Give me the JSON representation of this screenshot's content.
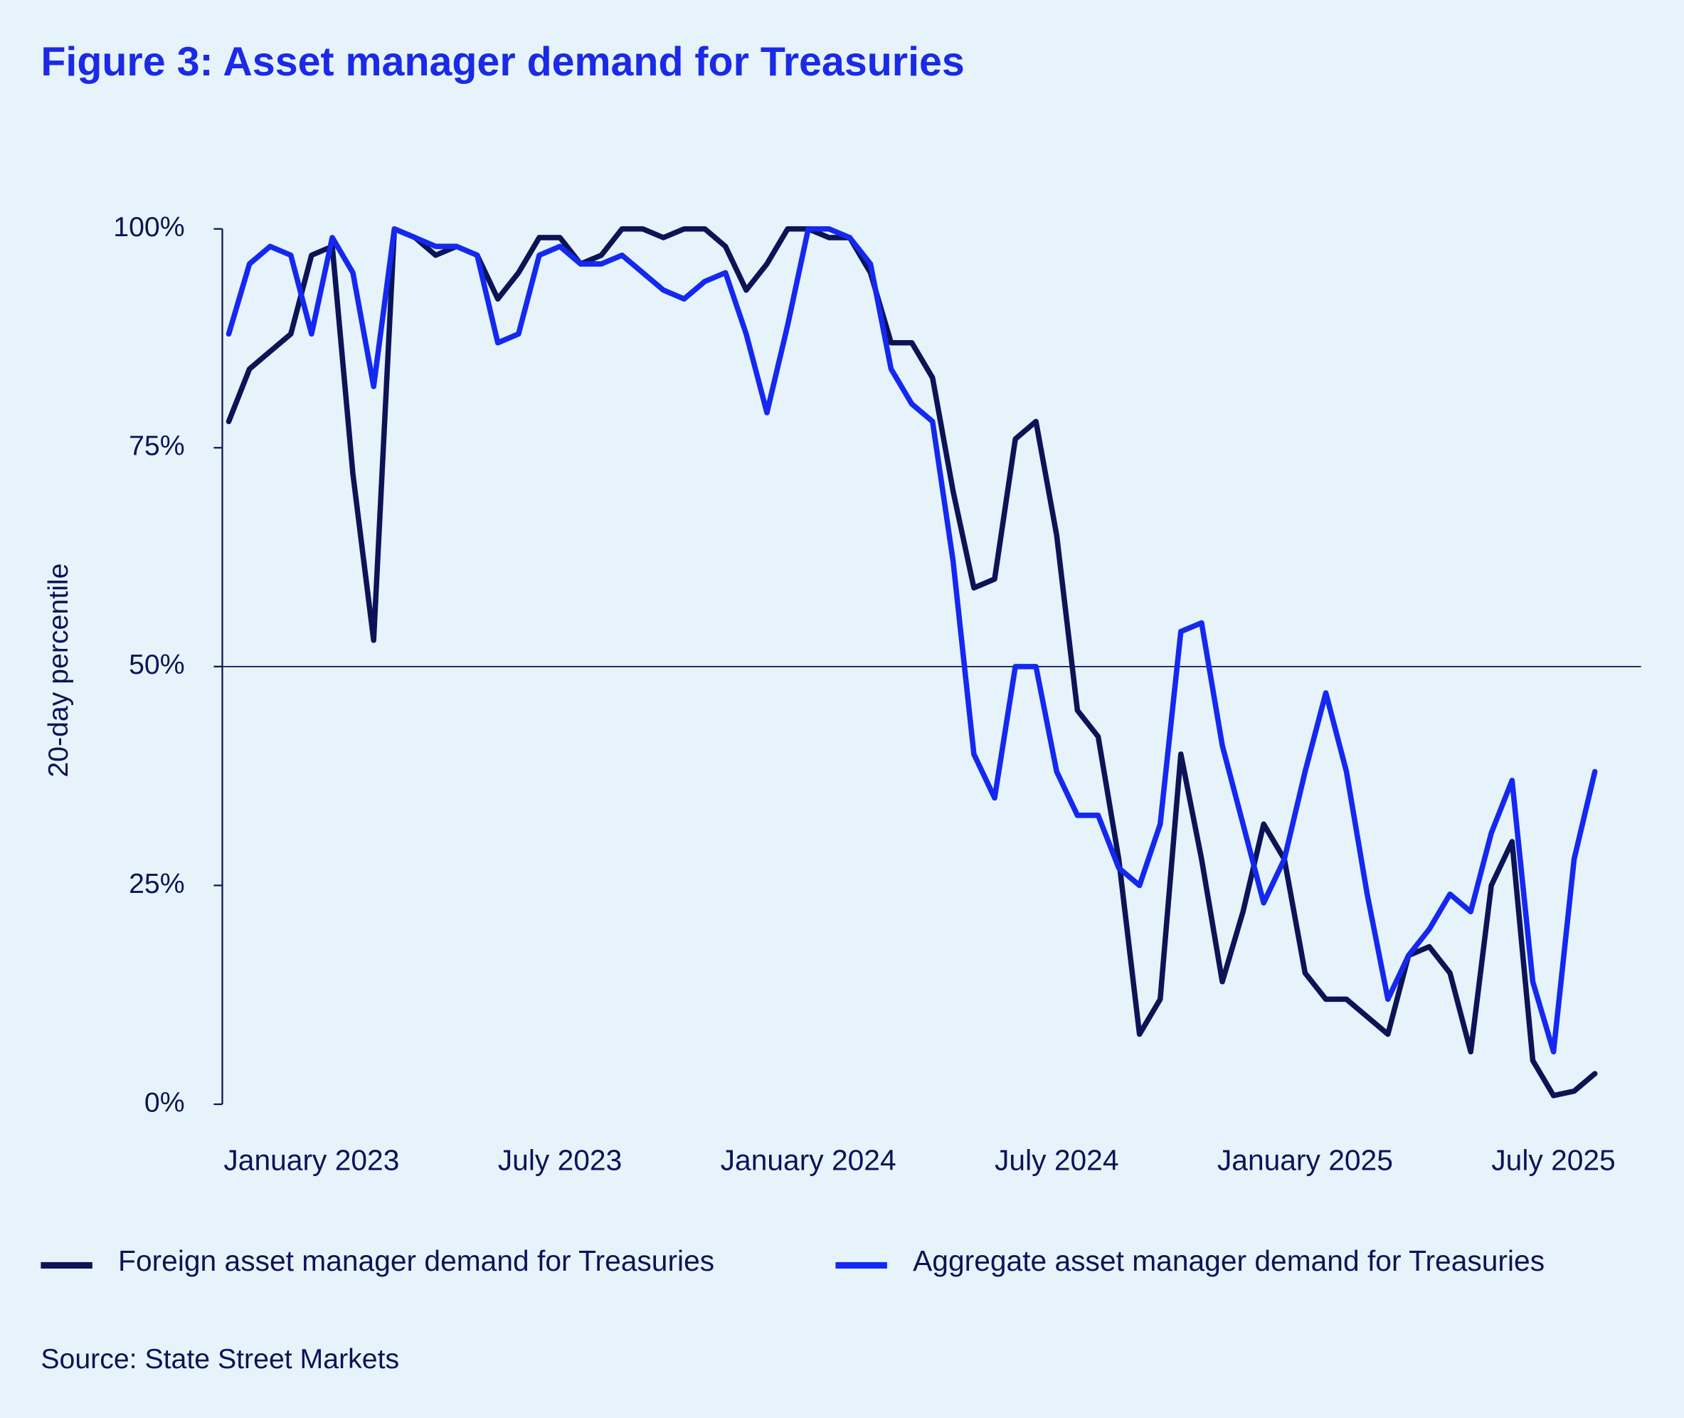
{
  "chart_data": {
    "type": "line",
    "title": "Figure 3: Asset manager demand for Treasuries",
    "y_label": "20-day percentile",
    "source": "Source: State Street Markets",
    "categories": [
      null,
      null,
      null,
      null,
      "January 2023",
      null,
      null,
      null,
      null,
      null,
      null,
      null,
      null,
      null,
      null,
      null,
      "July 2023",
      null,
      null,
      null,
      null,
      null,
      null,
      null,
      null,
      null,
      null,
      null,
      "January 2024",
      null,
      null,
      null,
      null,
      null,
      null,
      null,
      null,
      null,
      null,
      null,
      "July 2024",
      null,
      null,
      null,
      null,
      null,
      null,
      null,
      null,
      null,
      null,
      null,
      "January 2025",
      null,
      null,
      null,
      null,
      null,
      null,
      null,
      null,
      null,
      null,
      null,
      "July 2025",
      null,
      null
    ],
    "series": [
      {
        "name": "Foreign asset manager demand for Treasuries",
        "color": "#0c1456",
        "values": [
          78,
          84,
          86,
          88,
          97,
          98,
          72,
          53,
          100,
          99,
          97,
          98,
          97,
          92,
          95,
          99,
          99,
          96,
          97,
          100,
          100,
          99,
          100,
          100,
          98,
          93,
          96,
          100,
          100,
          99,
          99,
          95,
          87,
          87,
          83,
          70,
          59,
          60,
          76,
          78,
          65,
          45,
          42,
          28,
          8,
          12,
          40,
          28,
          14,
          22,
          32,
          28,
          15,
          12,
          12,
          10,
          8,
          17,
          18,
          15,
          6,
          25,
          30,
          5,
          1,
          1.5,
          3.5
        ]
      },
      {
        "name": "Aggregate asset manager demand for Treasuries",
        "color": "#1428f0",
        "values": [
          88,
          96,
          98,
          97,
          88,
          99,
          95,
          82,
          100,
          99,
          98,
          98,
          97,
          87,
          88,
          97,
          98,
          96,
          96,
          97,
          95,
          93,
          92,
          94,
          95,
          88,
          79,
          89,
          100,
          100,
          99,
          96,
          84,
          80,
          78,
          62,
          40,
          35,
          50,
          50,
          38,
          33,
          33,
          27,
          25,
          32,
          54,
          55,
          41,
          32,
          23,
          28,
          38,
          47,
          38,
          24,
          12,
          17,
          20,
          24,
          22,
          31,
          37,
          14,
          6,
          28,
          38
        ]
      }
    ],
    "ylim": [
      0,
      100
    ],
    "yticks": [
      {
        "value": 0,
        "label": "0%"
      },
      {
        "value": 25,
        "label": "25%"
      },
      {
        "value": 50,
        "label": "50%"
      },
      {
        "value": 75,
        "label": "75%"
      },
      {
        "value": 100,
        "label": "100%"
      }
    ],
    "hline": 50
  }
}
